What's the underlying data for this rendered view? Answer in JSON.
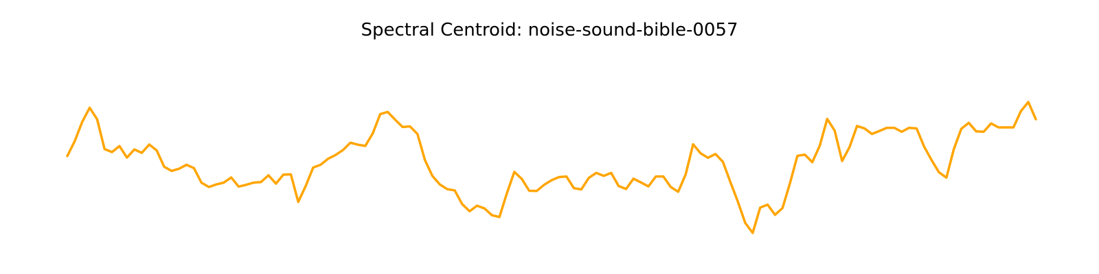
{
  "chart_data": {
    "type": "line",
    "title": "Spectral Centroid: noise-sound-bible-0057",
    "xlabel": "",
    "ylabel": "",
    "axes_visible": false,
    "grid": false,
    "ylim": [
      0,
      100
    ],
    "series": [
      {
        "color": "#FFA500",
        "values": [
          45.6,
          53.1,
          62.8,
          69.9,
          64.1,
          49.1,
          47.6,
          50.6,
          44.8,
          48.9,
          47.2,
          51.4,
          48.4,
          40.2,
          38.1,
          39.2,
          41.2,
          39.5,
          32.2,
          30.0,
          31.3,
          32.2,
          34.8,
          30.2,
          31.1,
          32.2,
          32.5,
          35.9,
          31.7,
          36.2,
          36.4,
          22.5,
          30.5,
          39.8,
          41.2,
          44.2,
          46.1,
          48.6,
          52.3,
          51.3,
          50.7,
          57.0,
          66.7,
          67.8,
          63.9,
          60.2,
          60.5,
          56.7,
          43.6,
          35.6,
          31.3,
          28.9,
          28.3,
          21.4,
          17.8,
          20.6,
          19.2,
          15.8,
          14.9,
          26.8,
          37.6,
          34.1,
          28.1,
          28.0,
          31.1,
          33.4,
          35.0,
          35.3,
          29.4,
          28.8,
          34.6,
          37.1,
          35.6,
          37.1,
          30.5,
          29.0,
          34.2,
          32.3,
          30.3,
          35.3,
          35.3,
          30.0,
          27.6,
          36.3,
          51.5,
          47.0,
          44.7,
          46.6,
          42.7,
          32.5,
          22.7,
          11.9,
          6.9,
          19.6,
          21.1,
          16.0,
          19.4,
          31.9,
          45.7,
          46.3,
          42.5,
          50.8,
          64.3,
          58.4,
          43.1,
          50.1,
          60.7,
          59.5,
          56.7,
          58.2,
          59.8,
          59.8,
          57.8,
          59.8,
          59.5,
          50.4,
          43.6,
          37.4,
          34.7,
          49.1,
          59.3,
          62.3,
          58.0,
          57.8,
          62.0,
          60.0,
          60.0,
          60.0,
          68.2,
          72.8,
          64.1
        ]
      }
    ]
  }
}
